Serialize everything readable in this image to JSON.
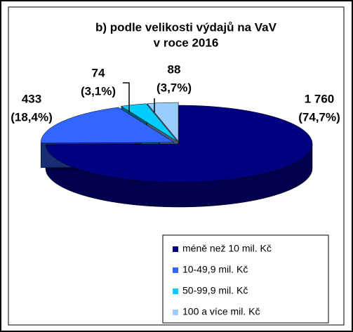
{
  "chart_data": {
    "type": "pie3d",
    "title": [
      "b) podle velikosti výdajů na VaV",
      "v roce 2016"
    ],
    "categories": [
      "méně než 10 mil. Kč",
      "10-49,9 mil. Kč",
      "50-99,9 mil. Kč",
      "100 a více mil. Kč"
    ],
    "values": [
      1760,
      433,
      74,
      88
    ],
    "value_labels": [
      "1 760",
      "433",
      "74",
      "88"
    ],
    "percent_labels": [
      "(74,7%)",
      "(18,4%)",
      "(3,1%)",
      "(3,7%)"
    ],
    "colors": [
      "#000080",
      "#3366ff",
      "#00ccff",
      "#99ccff"
    ],
    "legend": "lower right"
  }
}
